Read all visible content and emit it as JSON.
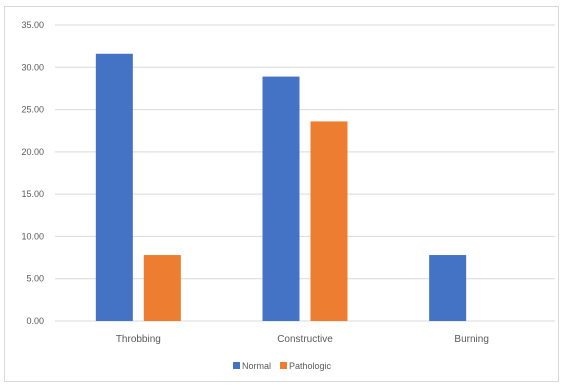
{
  "chart_data": {
    "type": "bar",
    "categories": [
      "Throbbing",
      "Constructive",
      "Burning"
    ],
    "series": [
      {
        "name": "Normal",
        "values": [
          31.6,
          28.9,
          7.8
        ],
        "color": "#4472c4"
      },
      {
        "name": "Pathologic",
        "values": [
          7.8,
          23.6,
          0
        ],
        "color": "#ed7d31"
      }
    ],
    "ylim": [
      0,
      35
    ],
    "yticks": [
      0,
      5,
      10,
      15,
      20,
      25,
      30,
      35
    ],
    "ytick_labels": [
      "0.00",
      "5.00",
      "10.00",
      "15.00",
      "20.00",
      "25.00",
      "30.00",
      "35.00"
    ],
    "grid": true,
    "legend_position": "bottom",
    "gridline_color": "#d9d9d9"
  }
}
